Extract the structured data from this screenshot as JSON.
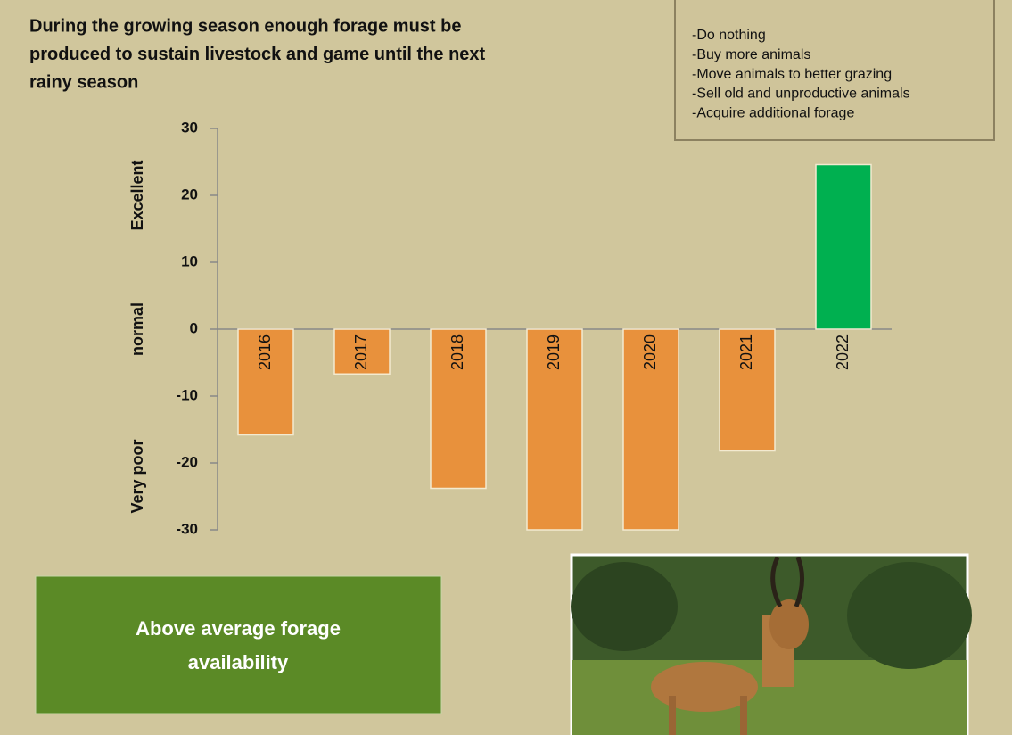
{
  "subtitle_lines": [
    "During the growing season enough forage must be",
    "produced to sustain livestock and game until the next",
    "rainy season"
  ],
  "options": [
    "-Do nothing",
    "-Buy more animals",
    "-Move animals to better grazing",
    "-Sell old and unproductive animals",
    "-Acquire additional forage"
  ],
  "status_lines": [
    "Above average forage",
    "availability"
  ],
  "chart_data": {
    "type": "bar",
    "categories": [
      "2016",
      "2017",
      "2018",
      "2019",
      "2020",
      "2021",
      "2022"
    ],
    "values": [
      -15.8,
      -6.7,
      -23.8,
      -30,
      -30,
      -18.2,
      24.6
    ],
    "colors": [
      "#e8913c",
      "#e8913c",
      "#e8913c",
      "#e8913c",
      "#e8913c",
      "#e8913c",
      "#00b050"
    ],
    "ylim": [
      -30,
      30
    ],
    "yticks": [
      -30,
      -20,
      -10,
      0,
      10,
      20,
      30
    ],
    "y_band_labels": [
      {
        "value": 20,
        "label": "Excellent"
      },
      {
        "value": 0,
        "label": "normal"
      },
      {
        "value": -22,
        "label": "Very poor"
      }
    ],
    "grid": false
  }
}
